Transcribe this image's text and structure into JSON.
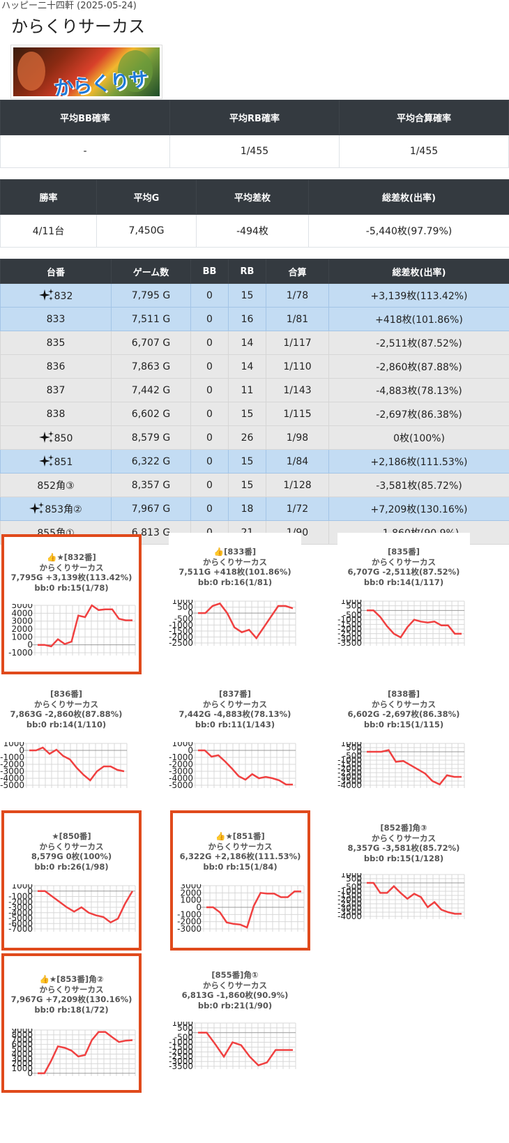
{
  "header": {
    "subtitle": "ハッピー二十四軒 (2025-05-24)",
    "title": "からくりサーカス",
    "banner_logo": "からくりサーカス"
  },
  "summary1": {
    "headers": [
      "平均BB確率",
      "平均RB確率",
      "平均合算確率"
    ],
    "values": [
      "-",
      "1/455",
      "1/455"
    ]
  },
  "summary2": {
    "headers": [
      "勝率",
      "平均G",
      "平均差枚",
      "総差枚(出率)"
    ],
    "values": [
      "4/11台",
      "7,450G",
      "-494枚",
      "-5,440枚(97.79%)"
    ]
  },
  "machines": {
    "headers": [
      "台番",
      "ゲーム数",
      "BB",
      "RB",
      "合算",
      "総差枚(出率)"
    ],
    "rows": [
      {
        "num": "832",
        "games": "7,795 G",
        "bb": "0",
        "rb": "15",
        "total": "1/78",
        "diff": "+3,139枚(113.42%)",
        "star": true,
        "style": "blue"
      },
      {
        "num": "833",
        "games": "7,511 G",
        "bb": "0",
        "rb": "16",
        "total": "1/81",
        "diff": "+418枚(101.86%)",
        "star": false,
        "style": "blue"
      },
      {
        "num": "835",
        "games": "6,707 G",
        "bb": "0",
        "rb": "14",
        "total": "1/117",
        "diff": "-2,511枚(87.52%)",
        "star": false,
        "style": "gray"
      },
      {
        "num": "836",
        "games": "7,863 G",
        "bb": "0",
        "rb": "14",
        "total": "1/110",
        "diff": "-2,860枚(87.88%)",
        "star": false,
        "style": "gray"
      },
      {
        "num": "837",
        "games": "7,442 G",
        "bb": "0",
        "rb": "11",
        "total": "1/143",
        "diff": "-4,883枚(78.13%)",
        "star": false,
        "style": "gray"
      },
      {
        "num": "838",
        "games": "6,602 G",
        "bb": "0",
        "rb": "15",
        "total": "1/115",
        "diff": "-2,697枚(86.38%)",
        "star": false,
        "style": "gray"
      },
      {
        "num": "850",
        "games": "8,579 G",
        "bb": "0",
        "rb": "26",
        "total": "1/98",
        "diff": "0枚(100%)",
        "star": true,
        "style": "gray"
      },
      {
        "num": "851",
        "games": "6,322 G",
        "bb": "0",
        "rb": "15",
        "total": "1/84",
        "diff": "+2,186枚(111.53%)",
        "star": true,
        "style": "blue"
      },
      {
        "num": "852角③",
        "games": "8,357 G",
        "bb": "0",
        "rb": "15",
        "total": "1/128",
        "diff": "-3,581枚(85.72%)",
        "star": false,
        "style": "gray"
      },
      {
        "num": "853角②",
        "games": "7,967 G",
        "bb": "0",
        "rb": "18",
        "total": "1/72",
        "diff": "+7,209枚(130.16%)",
        "star": true,
        "style": "blue"
      },
      {
        "num": "855角①",
        "games": "6,813 G",
        "bb": "0",
        "rb": "21",
        "total": "1/90",
        "diff": "-1,860枚(90.9%)",
        "star": false,
        "style": "gray"
      }
    ]
  },
  "accent_colors": {
    "highlight_border": "#e04a1c",
    "line": "#f04040",
    "row_blue": "#c3dcf3",
    "row_gray": "#e8e8e8",
    "header_dark": "#343a40"
  },
  "cards": [
    {
      "title": "👍★[832番]",
      "name": "からくりサーカス",
      "stats": "7,795G +3,139枚(113.42%)",
      "probs": "bb:0 rb:15(1/78)",
      "highlight": true
    },
    {
      "title": "👍[833番]",
      "name": "からくりサーカス",
      "stats": "7,511G +418枚(101.86%)",
      "probs": "bb:0 rb:16(1/81)",
      "highlight": false
    },
    {
      "title": "[835番]",
      "name": "からくりサーカス",
      "stats": "6,707G -2,511枚(87.52%)",
      "probs": "bb:0 rb:14(1/117)",
      "highlight": false
    },
    {
      "title": "[836番]",
      "name": "からくりサーカス",
      "stats": "7,863G -2,860枚(87.88%)",
      "probs": "bb:0 rb:14(1/110)",
      "highlight": false
    },
    {
      "title": "[837番]",
      "name": "からくりサーカス",
      "stats": "7,442G -4,883枚(78.13%)",
      "probs": "bb:0 rb:11(1/143)",
      "highlight": false
    },
    {
      "title": "[838番]",
      "name": "からくりサーカス",
      "stats": "6,602G -2,697枚(86.38%)",
      "probs": "bb:0 rb:15(1/115)",
      "highlight": false
    },
    {
      "title": "★[850番]",
      "name": "からくりサーカス",
      "stats": "8,579G 0枚(100%)",
      "probs": "bb:0 rb:26(1/98)",
      "highlight": true
    },
    {
      "title": "👍★[851番]",
      "name": "からくりサーカス",
      "stats": "6,322G +2,186枚(111.53%)",
      "probs": "bb:0 rb:15(1/84)",
      "highlight": true
    },
    {
      "title": "[852番]角③",
      "name": "からくりサーカス",
      "stats": "8,357G -3,581枚(85.72%)",
      "probs": "bb:0 rb:15(1/128)",
      "highlight": false
    },
    {
      "title": "👍★[853番]角②",
      "name": "からくりサーカス",
      "stats": "7,967G +7,209枚(130.16%)",
      "probs": "bb:0 rb:18(1/72)",
      "highlight": true
    },
    {
      "title": "[855番]角①",
      "name": "からくりサーカス",
      "stats": "6,813G -1,860枚(90.9%)",
      "probs": "bb:0 rb:21(1/90)",
      "highlight": false
    }
  ],
  "chart_data": [
    {
      "type": "line",
      "title": "",
      "yticks": [
        5000,
        4000,
        3000,
        2000,
        1000,
        0,
        -1000
      ],
      "ylim": [
        -1000,
        5000
      ],
      "values": [
        0,
        0,
        -200,
        700,
        100,
        400,
        3700,
        3500,
        5000,
        4400,
        4500,
        4500,
        3300,
        3100,
        3100
      ]
    },
    {
      "type": "line",
      "title": "",
      "yticks": [
        1000,
        500,
        0,
        -500,
        -1000,
        -1500,
        -2000,
        -2500
      ],
      "ylim": [
        -2500,
        1000
      ],
      "values": [
        0,
        0,
        600,
        800,
        0,
        -1200,
        -1600,
        -1400,
        -2100,
        -1200,
        -300,
        600,
        600,
        400
      ]
    },
    {
      "type": "line",
      "title": "",
      "yticks": [
        1000,
        500,
        0,
        -500,
        -1000,
        -1500,
        -2000,
        -2500,
        -3000,
        -3500
      ],
      "ylim": [
        -3500,
        1000
      ],
      "values": [
        0,
        0,
        -700,
        -1700,
        -2500,
        -2900,
        -1800,
        -1000,
        -1200,
        -1300,
        -1200,
        -1600,
        -1600,
        -2500,
        -2500
      ]
    },
    {
      "type": "line",
      "title": "",
      "yticks": [
        1000,
        0,
        -1000,
        -2000,
        -3000,
        -4000,
        -5000
      ],
      "ylim": [
        -5000,
        1000
      ],
      "values": [
        0,
        0,
        400,
        -500,
        100,
        -800,
        -1300,
        -2500,
        -3500,
        -4300,
        -3000,
        -2300,
        -2300,
        -2800,
        -3000
      ]
    },
    {
      "type": "line",
      "title": "",
      "yticks": [
        1000,
        0,
        -1000,
        -2000,
        -3000,
        -4000,
        -5000
      ],
      "ylim": [
        -5000,
        1000
      ],
      "values": [
        0,
        0,
        -900,
        -700,
        -1600,
        -2600,
        -3700,
        -4200,
        -3400,
        -4000,
        -3800,
        -4000,
        -4300,
        -4900,
        -4900
      ]
    },
    {
      "type": "line",
      "title": "",
      "yticks": [
        1000,
        500,
        0,
        -500,
        -1000,
        -1500,
        -2000,
        -2500,
        -3000,
        -3500,
        -4000
      ],
      "ylim": [
        -4000,
        1000
      ],
      "values": [
        0,
        0,
        0,
        200,
        -1200,
        -1100,
        -1600,
        -2100,
        -2600,
        -3500,
        -3900,
        -2800,
        -3000,
        -3000
      ]
    },
    {
      "type": "line",
      "title": "",
      "yticks": [
        1000,
        0,
        -1000,
        -2000,
        -3000,
        -4000,
        -5000,
        -6000,
        -7000
      ],
      "ylim": [
        -7000,
        1000
      ],
      "values": [
        0,
        0,
        -1000,
        -2000,
        -3000,
        -3800,
        -3000,
        -4000,
        -4500,
        -4800,
        -5800,
        -5100,
        -2300,
        0
      ]
    },
    {
      "type": "line",
      "title": "",
      "yticks": [
        3000,
        2000,
        1000,
        0,
        -1000,
        -2000,
        -3000
      ],
      "ylim": [
        -3000,
        3000
      ],
      "values": [
        0,
        0,
        -700,
        -2100,
        -2300,
        -2400,
        -2800,
        200,
        2000,
        1900,
        1900,
        1400,
        1400,
        2200,
        2200
      ]
    },
    {
      "type": "line",
      "title": "",
      "yticks": [
        1000,
        500,
        0,
        -500,
        -1000,
        -1500,
        -2000,
        -2500,
        -3000,
        -3500,
        -4000
      ],
      "ylim": [
        -4000,
        1000
      ],
      "values": [
        0,
        0,
        -1200,
        -1200,
        -400,
        -1200,
        -1900,
        -1300,
        -1700,
        -2900,
        -2300,
        -3200,
        -3500,
        -3700,
        -3700
      ]
    },
    {
      "type": "line",
      "title": "",
      "yticks": [
        9000,
        8000,
        7000,
        6000,
        5000,
        4000,
        3000,
        2000,
        1000,
        0
      ],
      "ylim": [
        0,
        9000
      ],
      "values": [
        0,
        0,
        2600,
        5600,
        5300,
        4700,
        3500,
        3800,
        6900,
        8600,
        8600,
        7500,
        6500,
        6800,
        6900
      ]
    },
    {
      "type": "line",
      "title": "",
      "yticks": [
        1000,
        500,
        0,
        -500,
        -1000,
        -1500,
        -2000,
        -2500,
        -3000,
        -3500
      ],
      "ylim": [
        -3500,
        1000
      ],
      "values": [
        0,
        0,
        -1200,
        -2500,
        -1000,
        -1300,
        -2500,
        -3400,
        -3100,
        -1800,
        -1800,
        -1800
      ]
    }
  ]
}
